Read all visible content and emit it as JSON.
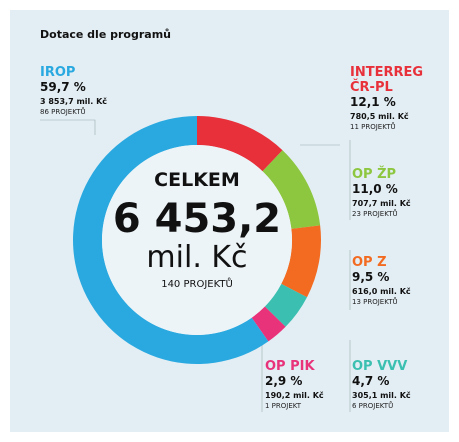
{
  "chart_data": {
    "type": "pie",
    "title": "Dotace dle programů",
    "categories": [
      "INTERREG ČR-PL",
      "OP ŽP",
      "OP Z",
      "OP VVV",
      "OP PIK",
      "IROP"
    ],
    "values": [
      12.1,
      11.0,
      9.5,
      4.7,
      2.9,
      59.7
    ],
    "value_labels": [
      "12,1 %",
      "11,0 %",
      "9,5 %",
      "4,7 %",
      "2,9 %",
      "59,7 %"
    ],
    "amounts": [
      "780,5 mil. Kč",
      "707,7 mil. Kč",
      "616,0 mil. Kč",
      "305,1 mil. Kč",
      "190,2 mil. Kč",
      "3 853,7 mil. Kč"
    ],
    "projects": [
      "11 PROJEKTŮ",
      "23 PROJEKTŮ",
      "13 PROJEKTŮ",
      "6 PROJEKTŮ",
      "1 PROJEKT",
      "86 PROJEKTŮ"
    ],
    "colors": [
      "#e8303a",
      "#8dc63f",
      "#f26b21",
      "#3bbfb0",
      "#e8337a",
      "#2aa9e0"
    ],
    "center": {
      "label": "CELKEM",
      "total": "6 453,2",
      "unit": "mil. Kč",
      "projects": "140 PROJEKTŮ"
    }
  }
}
